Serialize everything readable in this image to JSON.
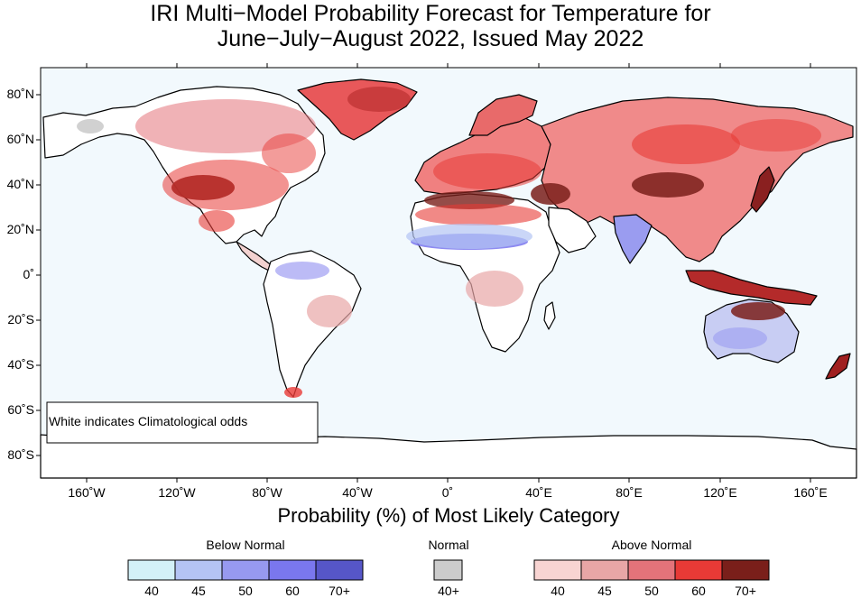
{
  "title_line1": "IRI Multi−Model Probability Forecast for Temperature for",
  "title_line2": "June−July−August 2022, Issued May 2022",
  "x_axis_label": "Probability (%) of Most Likely Category",
  "note": "White indicates Climatological odds",
  "lat_ticks": [
    "80˚N",
    "60˚N",
    "40˚N",
    "20˚N",
    "0˚",
    "20˚S",
    "40˚S",
    "60˚S",
    "80˚S"
  ],
  "lon_ticks": [
    "160˚W",
    "120˚W",
    "80˚W",
    "40˚W",
    "0˚",
    "40˚E",
    "80˚E",
    "120˚E",
    "160˚E"
  ],
  "legend": {
    "below": {
      "label": "Below Normal",
      "ticks": [
        "40",
        "45",
        "50",
        "60",
        "70+"
      ],
      "colors": [
        "#d3f1f8",
        "#b4c4f4",
        "#9799f0",
        "#7a77ee",
        "#5656c8"
      ]
    },
    "normal": {
      "label": "Normal",
      "ticks": [
        "40+"
      ],
      "colors": [
        "#cccccc"
      ]
    },
    "above": {
      "label": "Above Normal",
      "ticks": [
        "40",
        "45",
        "50",
        "60",
        "70+"
      ],
      "colors": [
        "#f8d4d2",
        "#e8a6a6",
        "#e4737a",
        "#e83a36",
        "#7a1f1a"
      ]
    }
  },
  "colors": {
    "ocean": "#f2f9fd",
    "coast": "#000000",
    "border": "#888888"
  }
}
